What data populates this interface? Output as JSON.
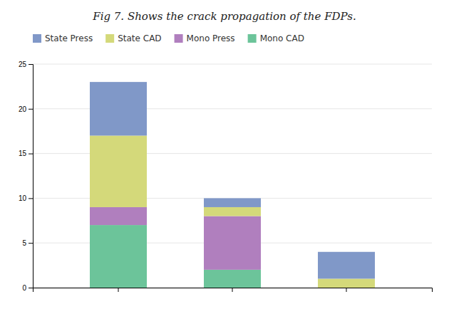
{
  "chart_data": {
    "type": "bar",
    "stacked": true,
    "title": "Fig 7. Shows the crack propagation of the FDPs.",
    "categories": [
      null,
      null,
      null
    ],
    "series": [
      {
        "name": "Mono CAD",
        "color": "#6cc49a",
        "values": [
          7,
          2,
          0
        ]
      },
      {
        "name": "Mono Press",
        "color": "#b07fbe",
        "values": [
          2,
          6,
          0
        ]
      },
      {
        "name": "State CAD",
        "color": "#d4d97a",
        "values": [
          8,
          1,
          1
        ]
      },
      {
        "name": "State Press",
        "color": "#8098c8",
        "values": [
          6,
          1,
          3
        ]
      }
    ],
    "ylim": [
      0,
      25
    ],
    "yticks": [
      0,
      5,
      10,
      15,
      20,
      25
    ],
    "grid": true,
    "legend": "top-left",
    "tick_labels": "y"
  }
}
